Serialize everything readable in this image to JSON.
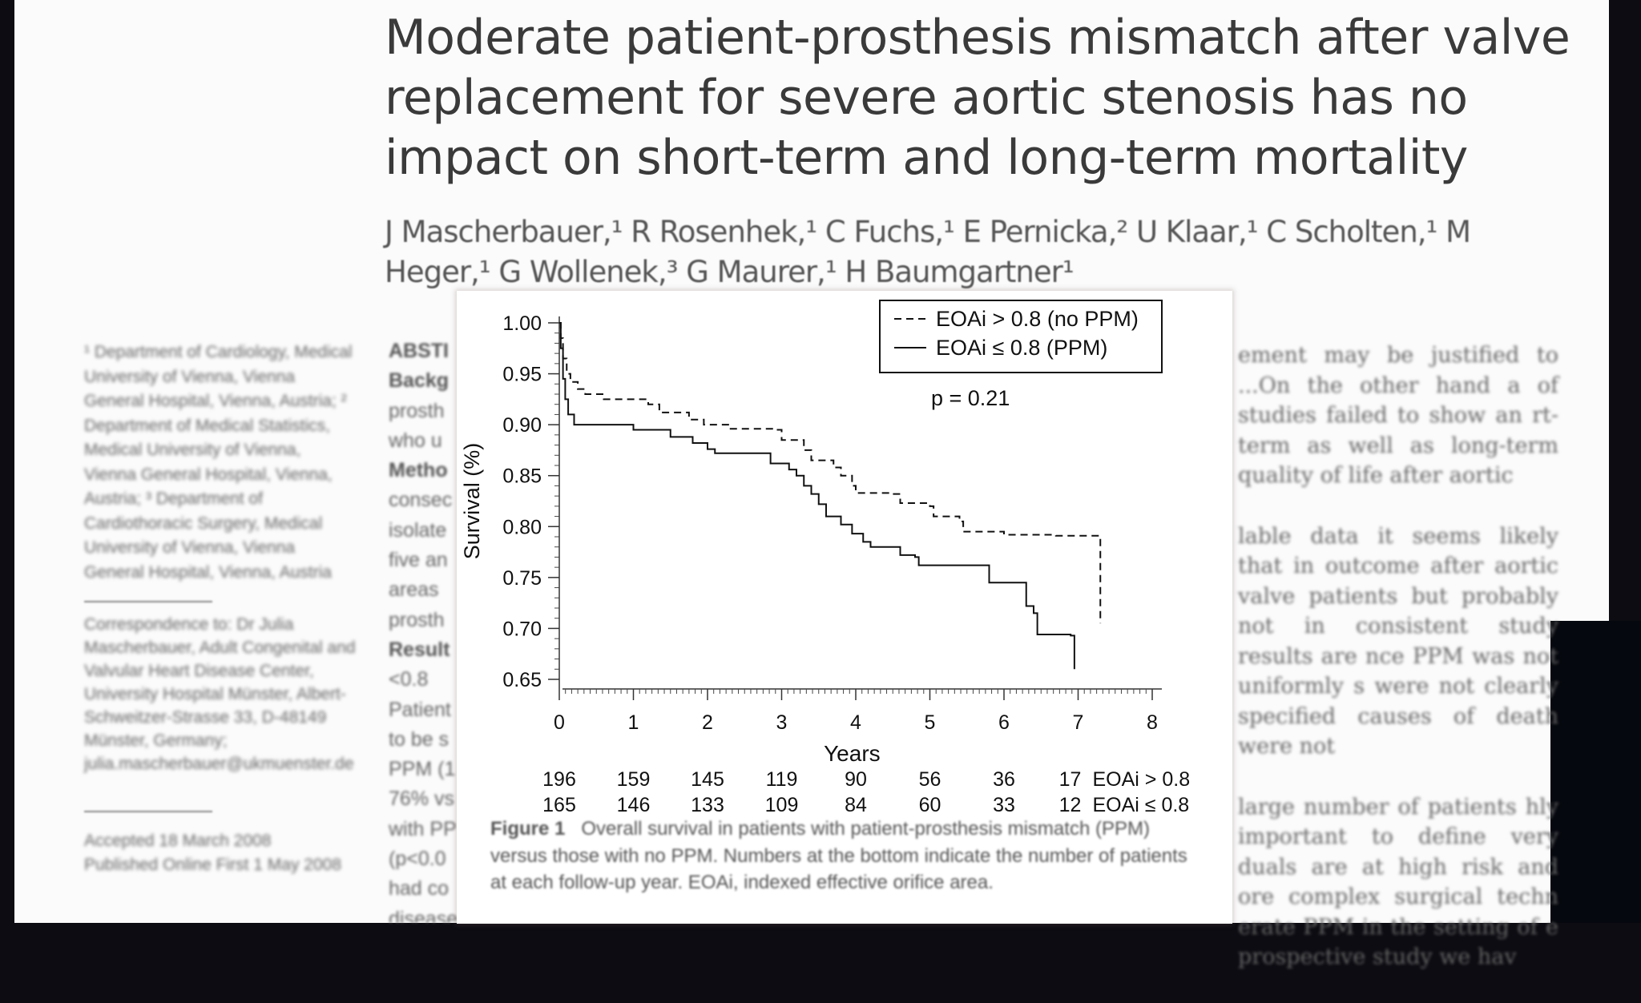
{
  "article": {
    "title": "Moderate patient-prosthesis mismatch after valve replacement for severe aortic stenosis has no impact on short-term and long-term mortality",
    "authors": "J Mascherbauer,¹ R Rosenhek,¹ C Fuchs,¹ E Pernicka,² U Klaar,¹ C Scholten,¹ M Heger,¹ G Wollenek,³ G Maurer,¹ H Baumgartner¹"
  },
  "sidebar": {
    "affiliations": "¹ Department of Cardiology, Medical University of Vienna, Vienna General Hospital, Vienna, Austria; ² Department of Medical Statistics, Medical University of Vienna, Vienna General Hospital, Vienna, Austria; ³ Department of Cardiothoracic Surgery, Medical University of Vienna, Vienna General Hospital, Vienna, Austria",
    "correspondence": "Correspondence to: Dr Julia Mascherbauer, Adult Congenital and Valvular Heart Disease Center, University Hospital Münster, Albert-Schweitzer-Strasse 33, D-48149 Münster, Germany; julia.mascherbauer@ukmuenster.de",
    "accepted": "Accepted 18 March 2008",
    "published": "Published Online First 1 May 2008"
  },
  "abstract_fragments": [
    "ABSTI",
    "Backg",
    "prosth",
    "who u",
    "Metho",
    "consec",
    "isolate",
    "five an",
    "areas",
    "prosth",
    "Result",
    "<0.8",
    "Patient",
    "to be s",
    "PPM (1",
    "76% vs",
    "with PP",
    "(p<0.0",
    "had co",
    "disease"
  ],
  "right_column": {
    "para1": "ement may be justified to ...On the other hand a of studies failed to show an rt-term as well as long-term quality of life after aortic",
    "para2": "lable data it seems likely that in outcome after aortic valve patients but probably not in consistent study results are nce PPM was not uniformly s were not clearly specified causes of death were not",
    "para3": "large number of patients hly important to define very duals are at high risk and ore complex surgical techn erate PPM in the setting of e prospective study we hav"
  },
  "figure": {
    "caption_label": "Figure 1",
    "caption_text": "Overall survival in patients with patient-prosthesis mismatch (PPM) versus those with no PPM. Numbers at the bottom indicate the number of patients at each follow-up year. EOAi, indexed effective orifice area."
  },
  "chart_data": {
    "type": "line",
    "title": "",
    "xlabel": "Years",
    "ylabel": "Survival (%)",
    "xlim": [
      0,
      8
    ],
    "ylim": [
      0.65,
      1.0
    ],
    "x_ticks": [
      "0",
      "1",
      "2",
      "3",
      "4",
      "5",
      "6",
      "7",
      "8"
    ],
    "y_ticks": [
      "1.00",
      "0.95",
      "0.90",
      "0.85",
      "0.80",
      "0.75",
      "0.70",
      "0.65"
    ],
    "annotation": "p = 0.21",
    "legend_position": "top-right",
    "series": [
      {
        "name": "EOAi > 0.8 (no PPM)",
        "style": "dashed",
        "points": [
          [
            0,
            1.0
          ],
          [
            0.02,
            0.985
          ],
          [
            0.05,
            0.965
          ],
          [
            0.1,
            0.95
          ],
          [
            0.15,
            0.942
          ],
          [
            0.25,
            0.935
          ],
          [
            0.35,
            0.93
          ],
          [
            0.6,
            0.925
          ],
          [
            1.2,
            0.92
          ],
          [
            1.35,
            0.912
          ],
          [
            1.75,
            0.905
          ],
          [
            1.95,
            0.9
          ],
          [
            2.3,
            0.896
          ],
          [
            2.9,
            0.895
          ],
          [
            3.0,
            0.885
          ],
          [
            3.3,
            0.875
          ],
          [
            3.4,
            0.865
          ],
          [
            3.7,
            0.858
          ],
          [
            3.8,
            0.85
          ],
          [
            3.95,
            0.84
          ],
          [
            4.0,
            0.833
          ],
          [
            4.5,
            0.832
          ],
          [
            4.6,
            0.823
          ],
          [
            5.0,
            0.82
          ],
          [
            5.05,
            0.81
          ],
          [
            5.4,
            0.805
          ],
          [
            5.45,
            0.795
          ],
          [
            6.0,
            0.792
          ],
          [
            6.7,
            0.791
          ],
          [
            7.3,
            0.79
          ],
          [
            7.3,
            0.705
          ]
        ],
        "at_risk": [
          196,
          159,
          145,
          119,
          90,
          56,
          36,
          17
        ],
        "at_risk_label": "EOAi > 0.8"
      },
      {
        "name": "EOAi ≤ 0.8 (PPM)",
        "style": "solid",
        "points": [
          [
            0,
            1.0
          ],
          [
            0.02,
            0.975
          ],
          [
            0.05,
            0.945
          ],
          [
            0.08,
            0.925
          ],
          [
            0.12,
            0.91
          ],
          [
            0.2,
            0.9
          ],
          [
            1.0,
            0.895
          ],
          [
            1.5,
            0.888
          ],
          [
            1.8,
            0.882
          ],
          [
            2.0,
            0.876
          ],
          [
            2.1,
            0.872
          ],
          [
            2.8,
            0.872
          ],
          [
            2.85,
            0.862
          ],
          [
            3.1,
            0.856
          ],
          [
            3.2,
            0.85
          ],
          [
            3.3,
            0.84
          ],
          [
            3.4,
            0.832
          ],
          [
            3.5,
            0.822
          ],
          [
            3.6,
            0.81
          ],
          [
            3.8,
            0.802
          ],
          [
            3.95,
            0.793
          ],
          [
            4.1,
            0.785
          ],
          [
            4.2,
            0.78
          ],
          [
            4.6,
            0.772
          ],
          [
            4.8,
            0.77
          ],
          [
            4.85,
            0.762
          ],
          [
            5.3,
            0.762
          ],
          [
            5.75,
            0.762
          ],
          [
            5.8,
            0.745
          ],
          [
            6.25,
            0.745
          ],
          [
            6.3,
            0.722
          ],
          [
            6.4,
            0.715
          ],
          [
            6.45,
            0.694
          ],
          [
            6.9,
            0.693
          ],
          [
            6.95,
            0.66
          ]
        ],
        "at_risk": [
          165,
          146,
          133,
          109,
          84,
          60,
          33,
          12
        ],
        "at_risk_label": "EOAi ≤ 0.8"
      }
    ]
  }
}
